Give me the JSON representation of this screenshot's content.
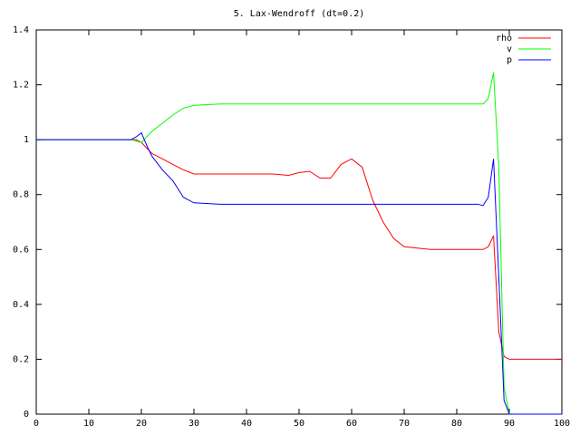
{
  "chart_data": {
    "type": "line",
    "title": "5. Lax-Wendroff (dt=0.2)",
    "x": [
      0,
      18,
      19,
      20,
      21,
      22,
      24,
      26,
      28,
      30,
      35,
      40,
      45,
      48,
      50,
      52,
      54,
      56,
      58,
      60,
      62,
      64,
      66,
      68,
      70,
      75,
      80,
      84,
      85,
      86,
      87,
      88,
      89,
      90,
      95,
      100
    ],
    "series": [
      {
        "name": "rho",
        "color": "#ff0000",
        "values": [
          1,
          1,
          1,
          0.99,
          0.97,
          0.95,
          0.93,
          0.91,
          0.89,
          0.875,
          0.875,
          0.875,
          0.875,
          0.87,
          0.88,
          0.885,
          0.86,
          0.86,
          0.91,
          0.93,
          0.9,
          0.78,
          0.7,
          0.64,
          0.61,
          0.6,
          0.6,
          0.6,
          0.6,
          0.61,
          0.65,
          0.3,
          0.21,
          0.2,
          0.2,
          0.2
        ]
      },
      {
        "name": "v",
        "color": "#00ff00",
        "values": [
          1,
          1,
          0.995,
          0.99,
          1.01,
          1.03,
          1.06,
          1.09,
          1.115,
          1.125,
          1.13,
          1.13,
          1.13,
          1.13,
          1.13,
          1.13,
          1.13,
          1.13,
          1.13,
          1.13,
          1.13,
          1.13,
          1.13,
          1.13,
          1.13,
          1.13,
          1.13,
          1.13,
          1.13,
          1.15,
          1.245,
          0.9,
          0.1,
          0,
          0,
          0
        ]
      },
      {
        "name": "p",
        "color": "#0000ff",
        "values": [
          1,
          1,
          1.01,
          1.025,
          0.98,
          0.94,
          0.89,
          0.85,
          0.79,
          0.77,
          0.765,
          0.765,
          0.765,
          0.765,
          0.765,
          0.765,
          0.765,
          0.765,
          0.765,
          0.765,
          0.765,
          0.765,
          0.765,
          0.765,
          0.765,
          0.765,
          0.765,
          0.765,
          0.76,
          0.79,
          0.93,
          0.5,
          0.05,
          0,
          0,
          0
        ]
      }
    ],
    "xlim": [
      0,
      100
    ],
    "xticks": [
      0,
      10,
      20,
      30,
      40,
      50,
      60,
      70,
      80,
      90,
      100
    ],
    "ylim": [
      0,
      1.4
    ],
    "yticks": [
      0,
      0.2,
      0.4,
      0.6,
      0.8,
      1,
      1.2,
      1.4
    ],
    "legend": "top-right",
    "grid": false
  }
}
